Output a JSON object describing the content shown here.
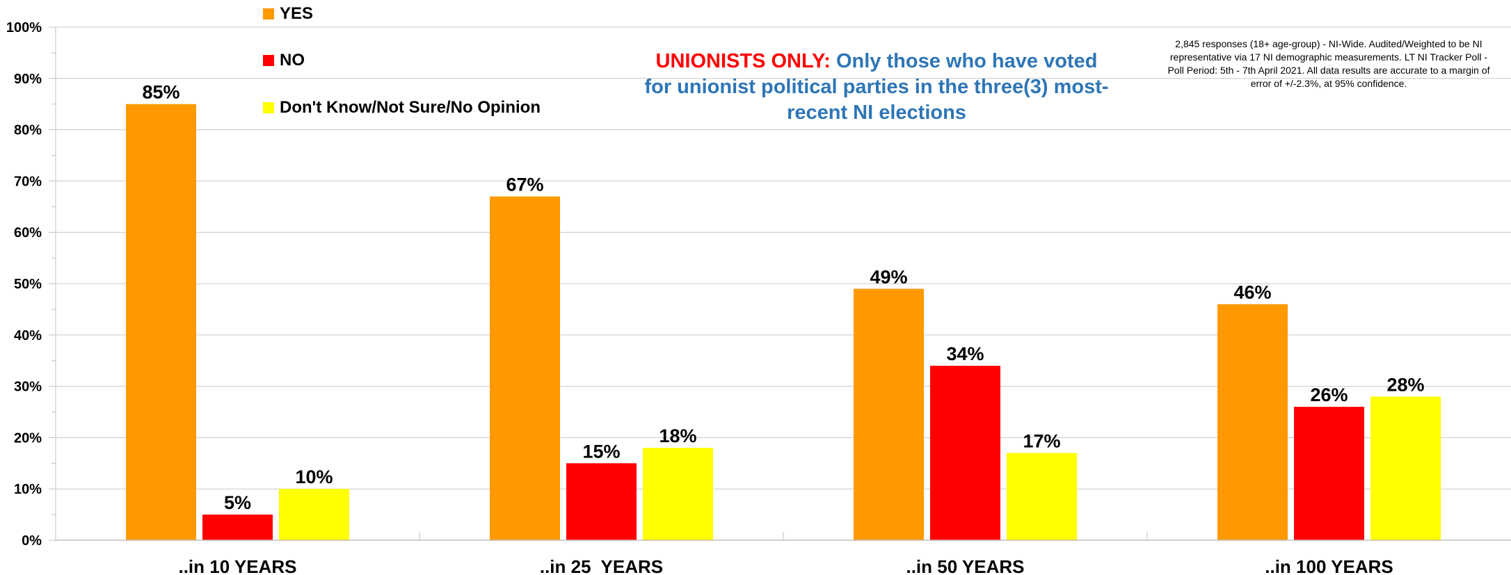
{
  "chart_data": {
    "type": "bar",
    "title_prefix": "UNIONISTS ONLY:",
    "title_main": "Only those who have voted for unionist political parties in the three(3) most-recent NI elections",
    "note": "2,845 responses (18+ age-group) - NI-Wide. Audited/Weighted to be NI representative via 17 NI demographic measurements. LT NI Tracker Poll - Poll Period: 5th - 7th April 2021. All data results are accurate to a margin of error of +/-2.3%, at 95% confidence.",
    "categories": [
      "..in 10 YEARS",
      "..in 25  YEARS",
      "..in 50 YEARS",
      "..in 100 YEARS"
    ],
    "series": [
      {
        "name": "YES",
        "color": "#ff9900",
        "values": [
          85,
          67,
          49,
          46
        ]
      },
      {
        "name": "NO",
        "color": "#ff0000",
        "values": [
          5,
          15,
          34,
          26
        ]
      },
      {
        "name": "Don't Know/Not Sure/No Opinion",
        "color": "#ffff00",
        "values": [
          10,
          18,
          17,
          28
        ]
      }
    ],
    "data_labels": [
      [
        "85%",
        "67%",
        "49%",
        "46%"
      ],
      [
        "5%",
        "15%",
        "34%",
        "26%"
      ],
      [
        "10%",
        "18%",
        "17%",
        "28%"
      ]
    ],
    "ylim": [
      0,
      100
    ],
    "yticks": [
      0,
      10,
      20,
      30,
      40,
      50,
      60,
      70,
      80,
      90,
      100
    ],
    "ytick_labels": [
      "0%",
      "10%",
      "20%",
      "30%",
      "40%",
      "50%",
      "60%",
      "70%",
      "80%",
      "90%",
      "100%"
    ],
    "grid": true,
    "legend_position": "top-left"
  }
}
